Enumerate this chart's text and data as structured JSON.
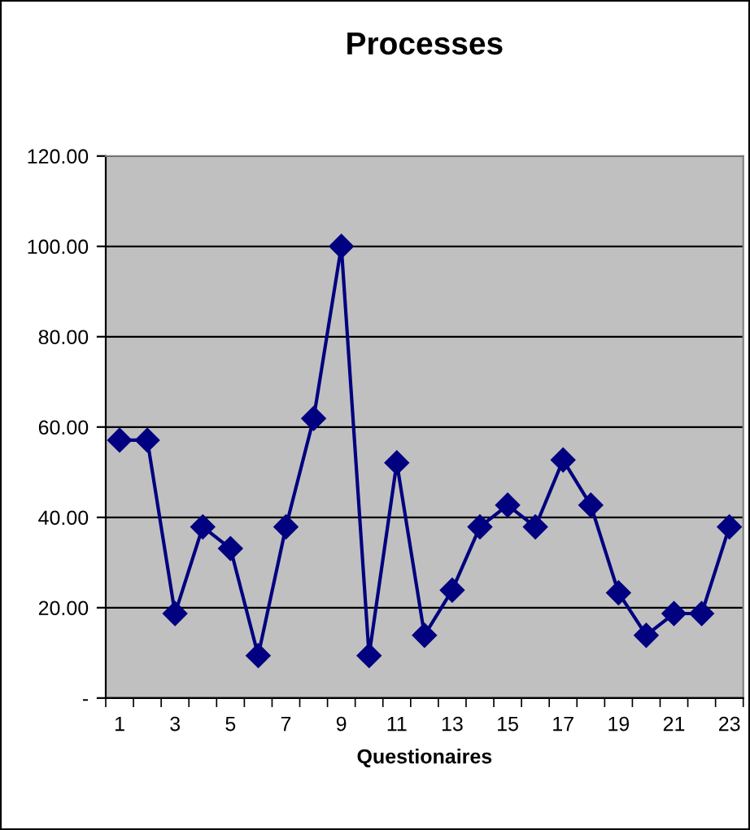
{
  "chart_data": {
    "type": "line",
    "title": "Processes",
    "xlabel": "Questionaires",
    "categories": [
      "1",
      null,
      "3",
      null,
      "5",
      null,
      "7",
      null,
      "9",
      null,
      "11",
      null,
      "13",
      null,
      "15",
      null,
      "17",
      null,
      "19",
      null,
      "21",
      null,
      "23"
    ],
    "series": [
      {
        "color": "#000080",
        "values": [
          57.1,
          57.1,
          18.7,
          37.9,
          33.1,
          9.4,
          37.9,
          61.9,
          100,
          9.4,
          52.1,
          13.9,
          23.9,
          37.9,
          42.7,
          37.9,
          52.7,
          42.7,
          23.3,
          13.9,
          18.7,
          18.7,
          37.9
        ]
      }
    ],
    "ylim": [
      0,
      120
    ],
    "yticks": [
      {
        "value": 0,
        "label": "-"
      },
      {
        "value": 20,
        "label": "20.00"
      },
      {
        "value": 40,
        "label": "40.00"
      },
      {
        "value": 60,
        "label": "60.00"
      },
      {
        "value": 80,
        "label": "80.00"
      },
      {
        "value": 100,
        "label": "100.00"
      },
      {
        "value": 120,
        "label": "120.00"
      }
    ],
    "grid": "y",
    "marker": "diamond",
    "line_style": "solid",
    "legend": false
  }
}
